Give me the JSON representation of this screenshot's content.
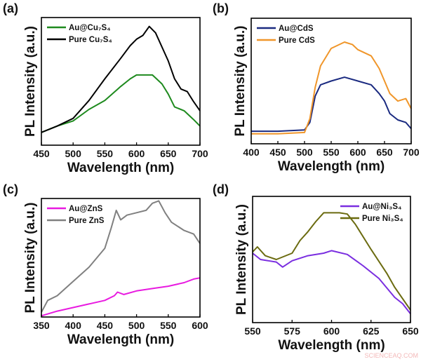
{
  "chart_data": [
    {
      "type": "line",
      "panel": "(a)",
      "xlabel": "Wavelength (nm)",
      "ylabel": "PL Intensity (a.u.)",
      "xlim": [
        450,
        700
      ],
      "xticks": [
        450,
        500,
        550,
        600,
        650,
        700
      ],
      "ylim": [
        0,
        1
      ],
      "yticks": [],
      "grid": false,
      "legend": "top-left",
      "series": [
        {
          "name": "Au@Cu₇S₄",
          "color": "#1e8a1e",
          "x": [
            450,
            475,
            500,
            525,
            550,
            575,
            590,
            600,
            625,
            640,
            650,
            660,
            675,
            690,
            700
          ],
          "y": [
            0.1,
            0.15,
            0.19,
            0.28,
            0.35,
            0.46,
            0.52,
            0.55,
            0.55,
            0.48,
            0.4,
            0.3,
            0.27,
            0.2,
            0.15
          ]
        },
        {
          "name": "Pure Cu₇S₄",
          "color": "#000000",
          "x": [
            450,
            475,
            500,
            525,
            550,
            575,
            590,
            600,
            610,
            620,
            630,
            650,
            660,
            670,
            680,
            690,
            700
          ],
          "y": [
            0.1,
            0.15,
            0.21,
            0.35,
            0.52,
            0.68,
            0.78,
            0.83,
            0.86,
            0.93,
            0.88,
            0.66,
            0.52,
            0.44,
            0.42,
            0.34,
            0.27
          ]
        }
      ]
    },
    {
      "type": "line",
      "panel": "(b)",
      "xlabel": "Wavelength (nm)",
      "ylabel": "PL Intensity (a.u.)",
      "xlim": [
        400,
        700
      ],
      "xticks": [
        400,
        450,
        500,
        550,
        600,
        650,
        700
      ],
      "ylim": [
        0,
        1
      ],
      "yticks": [],
      "grid": false,
      "legend": "top-left",
      "series": [
        {
          "name": "Au@CdS",
          "color": "#1a2a80",
          "x": [
            400,
            450,
            500,
            510,
            520,
            530,
            550,
            575,
            600,
            625,
            640,
            650,
            660,
            675,
            690,
            700
          ],
          "y": [
            0.1,
            0.1,
            0.11,
            0.17,
            0.38,
            0.47,
            0.5,
            0.53,
            0.5,
            0.47,
            0.4,
            0.34,
            0.24,
            0.19,
            0.17,
            0.12
          ]
        },
        {
          "name": "Pure CdS",
          "color": "#f0962a",
          "x": [
            400,
            450,
            500,
            510,
            520,
            530,
            550,
            575,
            590,
            600,
            625,
            640,
            650,
            660,
            675,
            690,
            700
          ],
          "y": [
            0.08,
            0.08,
            0.09,
            0.2,
            0.45,
            0.62,
            0.76,
            0.81,
            0.79,
            0.75,
            0.7,
            0.6,
            0.5,
            0.4,
            0.34,
            0.36,
            0.28
          ]
        }
      ]
    },
    {
      "type": "line",
      "panel": "(c)",
      "xlabel": "Wavelength (nm)",
      "ylabel": "PL Intensity (a.u.)",
      "xlim": [
        350,
        600
      ],
      "xticks": [
        350,
        400,
        450,
        500,
        550,
        600
      ],
      "ylim": [
        0,
        1
      ],
      "yticks": [],
      "grid": false,
      "legend": "top-left",
      "series": [
        {
          "name": "Au@ZnS",
          "color": "#e81ae0",
          "x": [
            350,
            375,
            400,
            425,
            450,
            465,
            470,
            480,
            500,
            525,
            550,
            575,
            590,
            600
          ],
          "y": [
            0.01,
            0.05,
            0.08,
            0.11,
            0.14,
            0.18,
            0.21,
            0.19,
            0.22,
            0.24,
            0.26,
            0.29,
            0.32,
            0.33
          ]
        },
        {
          "name": "Pure ZnS",
          "color": "#808080",
          "x": [
            350,
            360,
            375,
            400,
            425,
            450,
            460,
            468,
            475,
            485,
            500,
            515,
            525,
            535,
            545,
            555,
            575,
            590,
            600
          ],
          "y": [
            0.04,
            0.14,
            0.18,
            0.3,
            0.42,
            0.58,
            0.75,
            0.9,
            0.82,
            0.86,
            0.88,
            0.9,
            0.96,
            0.98,
            0.88,
            0.8,
            0.73,
            0.7,
            0.62
          ]
        }
      ]
    },
    {
      "type": "line",
      "panel": "(d)",
      "xlabel": "Wavelength (nm)",
      "ylabel": "PL Intensity (a.u.)",
      "xlim": [
        550,
        650
      ],
      "xticks": [
        550,
        575,
        600,
        625,
        650
      ],
      "ylim": [
        0,
        1
      ],
      "yticks": [],
      "grid": false,
      "legend": "top-right",
      "series": [
        {
          "name": "Au@Ni₃S₄",
          "color": "#7a2ee0",
          "x": [
            550,
            555,
            560,
            565,
            569,
            575,
            585,
            595,
            600,
            610,
            620,
            630,
            640,
            645,
            650
          ],
          "y": [
            0.55,
            0.5,
            0.49,
            0.48,
            0.44,
            0.49,
            0.53,
            0.55,
            0.57,
            0.54,
            0.45,
            0.35,
            0.2,
            0.15,
            0.07
          ]
        },
        {
          "name": "Pure Ni₃S₄",
          "color": "#6b6b10",
          "x": [
            550,
            553,
            558,
            565,
            575,
            580,
            585,
            590,
            595,
            600,
            605,
            610,
            615,
            625,
            635,
            640,
            650
          ],
          "y": [
            0.56,
            0.6,
            0.53,
            0.5,
            0.55,
            0.65,
            0.72,
            0.8,
            0.87,
            0.87,
            0.87,
            0.86,
            0.78,
            0.58,
            0.39,
            0.28,
            0.1
          ]
        }
      ]
    }
  ],
  "watermark": "SCIENCEAQ.COM"
}
